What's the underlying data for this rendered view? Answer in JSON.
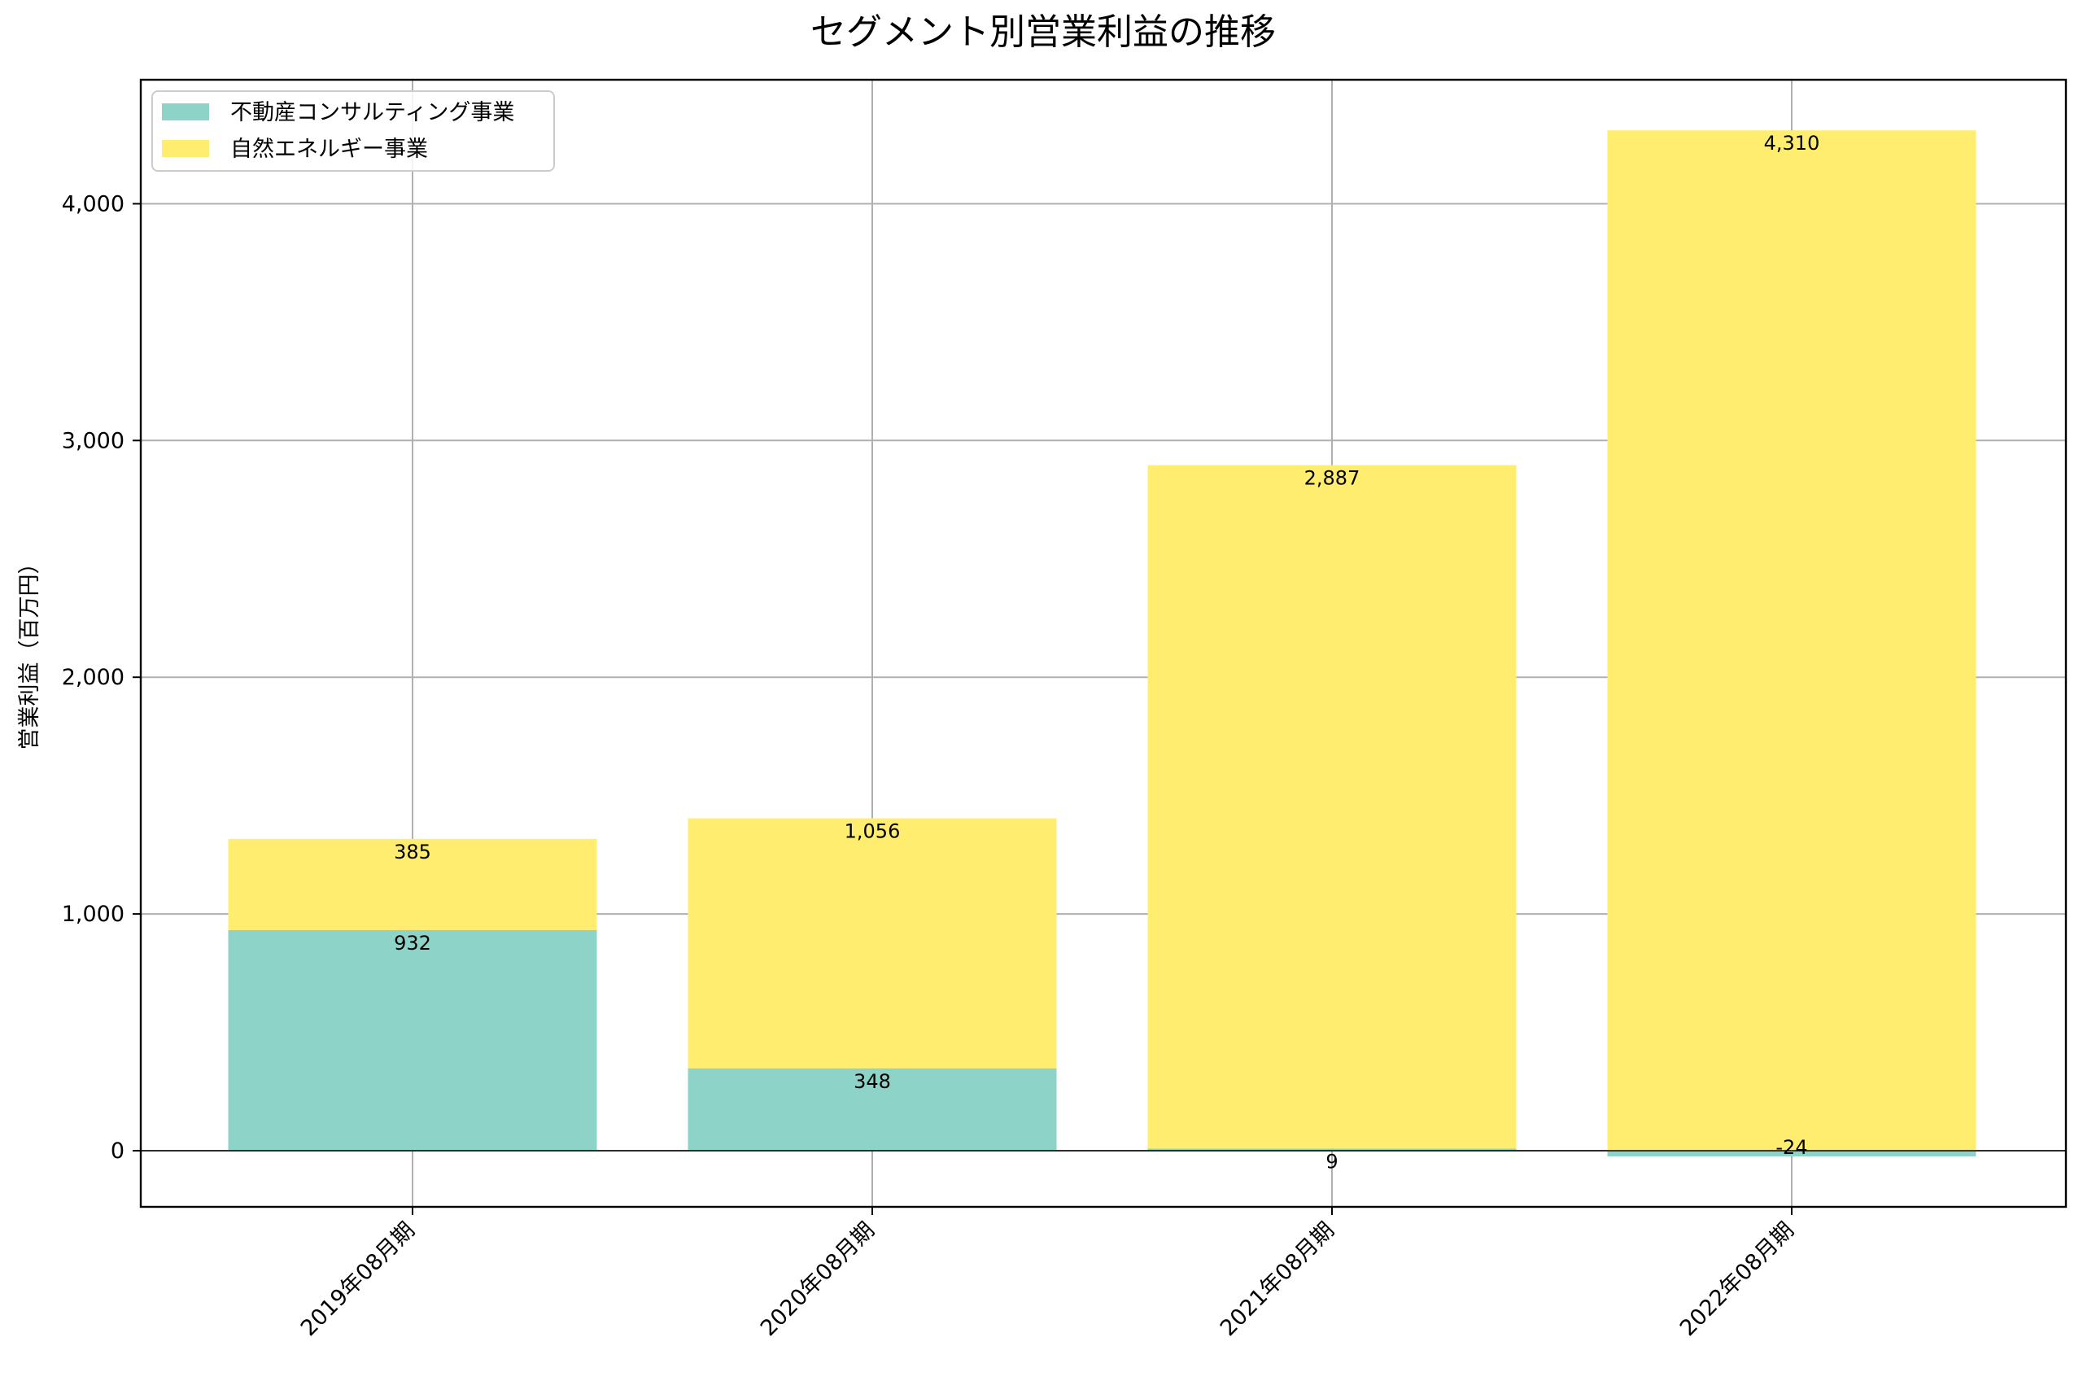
{
  "chart_data": {
    "type": "bar",
    "stacked": true,
    "title": "セグメント別営業利益の推移",
    "xlabel": "",
    "ylabel": "営業利益（百万円）",
    "categories": [
      "2019年08月期",
      "2020年08月期",
      "2021年08月期",
      "2022年08月期"
    ],
    "series": [
      {
        "name": "不動産コンサルティング事業",
        "color": "#8dd3c7",
        "values": [
          932,
          348,
          9,
          -24
        ],
        "labels": [
          "932",
          "348",
          "9",
          "-24"
        ]
      },
      {
        "name": "自然エネルギー事業",
        "color": "#ffed6f",
        "values": [
          385,
          1056,
          2887,
          4310
        ],
        "labels": [
          "385",
          "1,056",
          "2,887",
          "4,310"
        ]
      }
    ],
    "ylim": [
      -240,
      4540
    ],
    "yticks": [
      0,
      1000,
      2000,
      3000,
      4000
    ],
    "ytick_labels": [
      "0",
      "1,000",
      "2,000",
      "3,000",
      "4,000"
    ],
    "grid": true,
    "legend_position": "upper left"
  }
}
